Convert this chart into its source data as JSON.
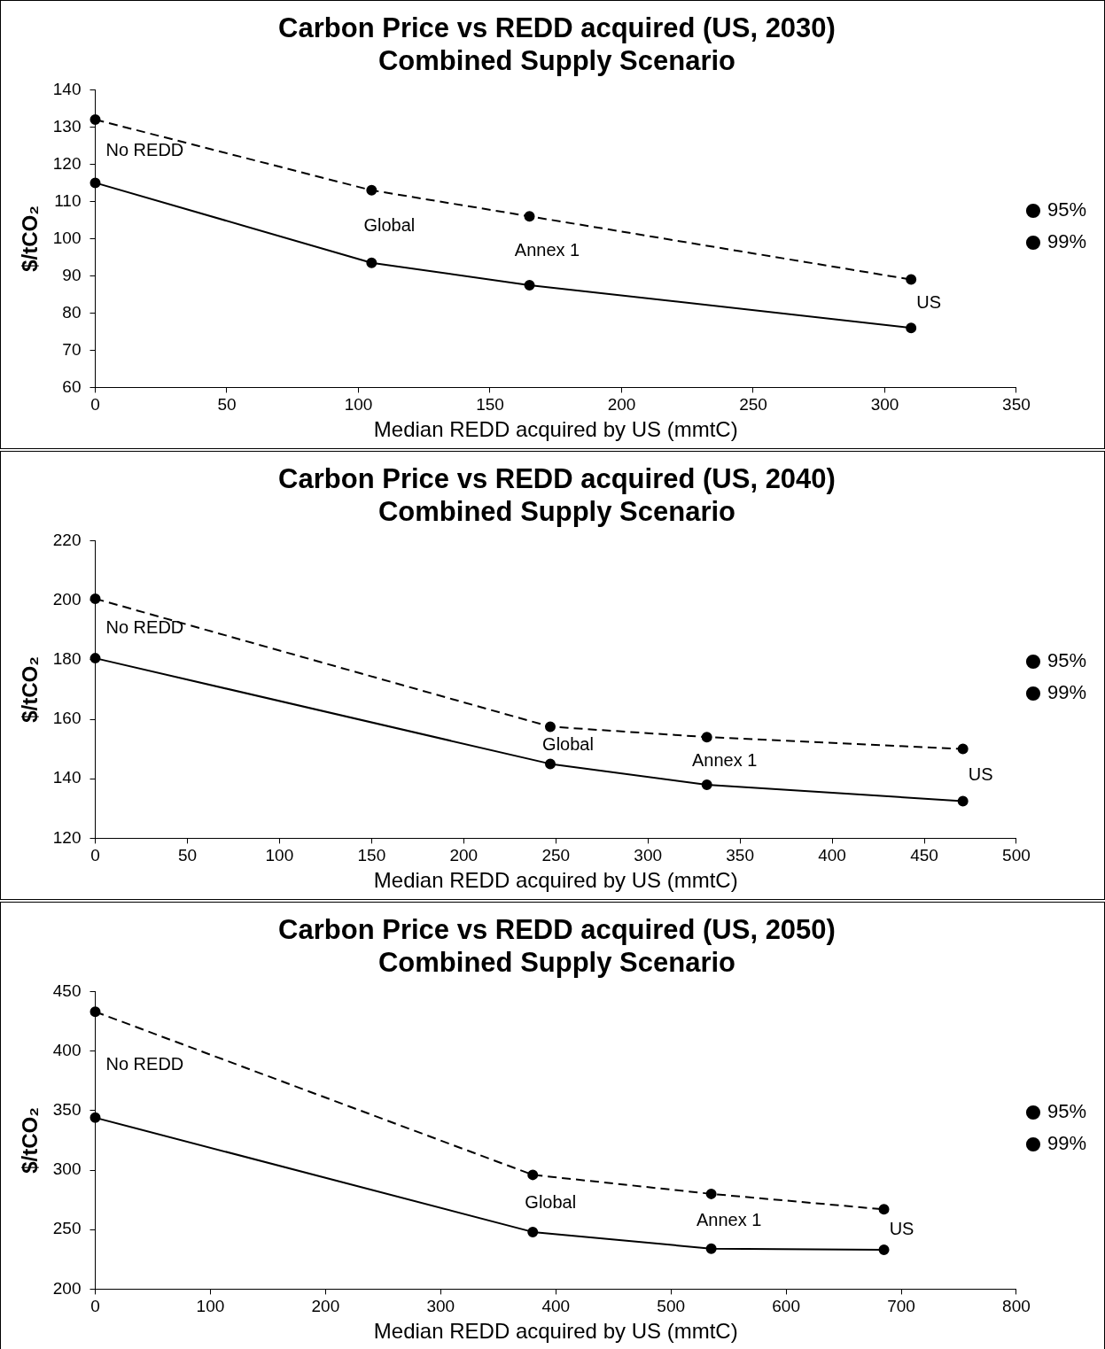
{
  "chart_data": [
    {
      "type": "line",
      "title": "Carbon Price vs REDD acquired (US, 2030)",
      "subtitle": "Combined Supply Scenario",
      "xlabel": "Median REDD acquired by US (mmtC)",
      "ylabel": "$/tCO₂",
      "x": [
        0,
        105,
        165,
        310
      ],
      "xlim": [
        0,
        350
      ],
      "xticks": [
        0,
        50,
        100,
        150,
        200,
        250,
        300,
        350
      ],
      "ylim": [
        60,
        140
      ],
      "yticks": [
        60,
        70,
        80,
        90,
        100,
        110,
        120,
        130,
        140
      ],
      "grid": false,
      "legend": "right",
      "marker": "circle",
      "series": [
        {
          "name": "95%",
          "color": "#000000",
          "line_style": "solid",
          "values": [
            115,
            93.5,
            87.5,
            76
          ]
        },
        {
          "name": "99%",
          "color": "#000000",
          "line_style": "dashed",
          "values": [
            132,
            113,
            106,
            89
          ]
        }
      ],
      "annotations": [
        {
          "text": "No REDD",
          "x": 0,
          "y": 115
        },
        {
          "text": "Global",
          "x": 105,
          "y": 93.5
        },
        {
          "text": "Annex 1",
          "x": 165,
          "y": 87.5
        },
        {
          "text": "US",
          "x": 310,
          "y": 76
        }
      ]
    },
    {
      "type": "line",
      "title": "Carbon Price vs REDD acquired (US, 2040)",
      "subtitle": "Combined Supply Scenario",
      "xlabel": "Median REDD acquired by US (mmtC)",
      "ylabel": "$/tCO₂",
      "x": [
        0,
        247,
        332,
        471
      ],
      "xlim": [
        0,
        500
      ],
      "xticks": [
        0,
        50,
        100,
        150,
        200,
        250,
        300,
        350,
        400,
        450,
        500
      ],
      "ylim": [
        120,
        220
      ],
      "yticks": [
        120,
        140,
        160,
        180,
        200,
        220
      ],
      "grid": false,
      "legend": "right",
      "marker": "circle",
      "series": [
        {
          "name": "95%",
          "color": "#000000",
          "line_style": "solid",
          "values": [
            180.5,
            145,
            138,
            132.5
          ]
        },
        {
          "name": "99%",
          "color": "#000000",
          "line_style": "dashed",
          "values": [
            200.5,
            157.5,
            154,
            150
          ]
        }
      ],
      "annotations": [
        {
          "text": "No REDD",
          "x": 0,
          "y": 180.5
        },
        {
          "text": "Global",
          "x": 247,
          "y": 145
        },
        {
          "text": "Annex 1",
          "x": 332,
          "y": 138
        },
        {
          "text": "US",
          "x": 471,
          "y": 132.5
        }
      ]
    },
    {
      "type": "line",
      "title": "Carbon Price vs REDD acquired (US, 2050)",
      "subtitle": "Combined Supply Scenario",
      "xlabel": "Median REDD acquired by US (mmtC)",
      "ylabel": "$/tCO₂",
      "x": [
        0,
        380,
        535,
        685
      ],
      "xlim": [
        0,
        800
      ],
      "xticks": [
        0,
        100,
        200,
        300,
        400,
        500,
        600,
        700,
        800
      ],
      "ylim": [
        200,
        450
      ],
      "yticks": [
        200,
        250,
        300,
        350,
        400,
        450
      ],
      "grid": false,
      "legend": "right",
      "marker": "circle",
      "series": [
        {
          "name": "95%",
          "color": "#000000",
          "line_style": "solid",
          "values": [
            344,
            248,
            234,
            233
          ]
        },
        {
          "name": "99%",
          "color": "#000000",
          "line_style": "dashed",
          "values": [
            433,
            296,
            280,
            267
          ]
        }
      ],
      "annotations": [
        {
          "text": "No REDD",
          "x": 0,
          "y": 344
        },
        {
          "text": "Global",
          "x": 380,
          "y": 248
        },
        {
          "text": "Annex 1",
          "x": 535,
          "y": 234
        },
        {
          "text": "US",
          "x": 685,
          "y": 233
        }
      ]
    }
  ]
}
